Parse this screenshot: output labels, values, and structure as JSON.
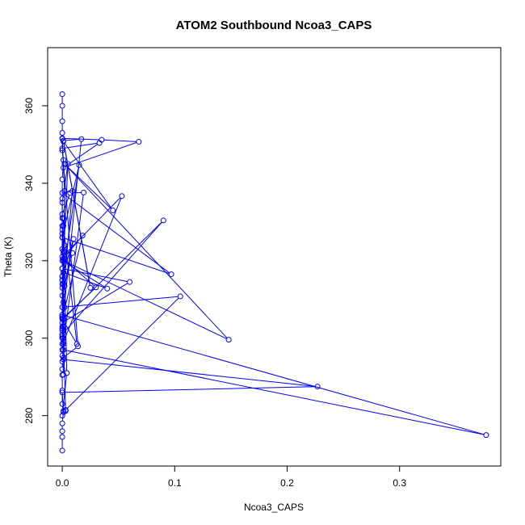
{
  "chart_data": {
    "type": "line",
    "title": "ATOM2 Southbound Ncoa3_CAPS",
    "xlabel": "Ncoa3_CAPS",
    "ylabel": "Theta (K)",
    "xlim": [
      -0.013,
      0.39
    ],
    "ylim": [
      267,
      375
    ],
    "xticks": [
      0.0,
      0.1,
      0.2,
      0.3
    ],
    "xtick_labels": [
      "0.0",
      "0.1",
      "0.2",
      "0.3"
    ],
    "yticks": [
      280,
      300,
      320,
      340,
      360
    ],
    "ytick_labels": [
      "280",
      "300",
      "320",
      "340",
      "360"
    ],
    "grid": false,
    "legend": "none",
    "line_style": "points-and-lines",
    "color": "#0000ff",
    "series": [
      {
        "x": [
          0.0,
          0.0,
          0.0,
          0.0,
          0.001,
          0.0,
          0.0,
          0.0,
          0.0,
          0.0,
          0.0,
          0.0,
          0.0,
          0.0,
          0.0,
          0.0,
          0.0,
          0.017,
          0.001,
          0.025,
          0.001,
          0.045,
          0.002,
          0.148,
          0.001,
          0.001,
          0.002,
          0.0,
          0.035,
          0.068,
          0.001,
          0.033,
          0.0,
          0.014,
          0.001,
          0.001,
          0.227,
          0.0,
          0.001,
          0.003,
          0.0,
          0.001,
          0.377,
          0.0,
          0.0,
          0.0,
          0.005,
          0.0,
          0.0,
          0.053,
          0.001,
          0.001,
          0.01,
          0.002,
          0.009,
          0.001,
          0.002,
          0.0,
          0.0,
          0.001,
          0.0,
          0.0,
          0.001,
          0.0,
          0.018,
          0.001,
          0.03,
          0.0,
          0.013,
          0.001,
          0.001,
          0.004,
          0.0,
          0.003,
          0.105,
          0.0,
          0.009,
          0.0,
          0.097,
          0.0,
          0.015,
          0.001,
          0.04,
          0.0,
          0.001,
          0.0,
          0.0,
          0.007,
          0.019,
          0.001,
          0.001,
          0.0,
          0.06,
          0.0,
          0.0,
          0.0,
          0.0,
          0.001,
          0.09,
          0.0,
          0.001,
          0.0,
          0.002,
          0.0,
          0.0,
          0.0,
          0.0,
          0.0,
          0.0,
          0.0,
          0.0,
          0.001,
          0.0,
          0.0,
          0.0,
          0.0,
          0.0,
          0.0
        ],
        "y": [
          271.0,
          274.5,
          276.0,
          278.0,
          280.9,
          283.0,
          286.5,
          290.5,
          292.0,
          294.0,
          295.5,
          297.0,
          298.5,
          300.0,
          301.0,
          302.0,
          303.0,
          351.4,
          351.0,
          313.0,
          350.8,
          333.0,
          345.0,
          299.6,
          320.0,
          309.3,
          338.0,
          351.6,
          351.2,
          350.7,
          344.0,
          350.4,
          349.0,
          297.9,
          295.0,
          294.5,
          287.5,
          286.0,
          281.2,
          281.2,
          311.0,
          297.0,
          275.0,
          306.0,
          313.0,
          314.0,
          345.0,
          335.0,
          321.0,
          336.7,
          299.0,
          317.0,
          325.6,
          313.5,
          322.0,
          322.5,
          324.0,
          326.0,
          328.0,
          314.0,
          315.0,
          316.0,
          290.6,
          305.0,
          326.5,
          320.5,
          313.1,
          305.0,
          298.5,
          329.0,
          331.0,
          291.0,
          280.0,
          281.5,
          310.8,
          308.0,
          338.0,
          337.5,
          316.5,
          326.0,
          344.7,
          317.0,
          312.8,
          320.0,
          322.0,
          329.0,
          332.0,
          337.5,
          337.6,
          298.5,
          300.0,
          304.0,
          314.5,
          318.0,
          300.5,
          302.5,
          305.5,
          305.0,
          330.4,
          301.0,
          303.0,
          306.0,
          308.0,
          315.0,
          316.0,
          318.0,
          323.0,
          327.0,
          331.0,
          336.0,
          341.0,
          346.0,
          348.5,
          351.5,
          353.0,
          356.0,
          360.0,
          363.0
        ]
      }
    ]
  }
}
